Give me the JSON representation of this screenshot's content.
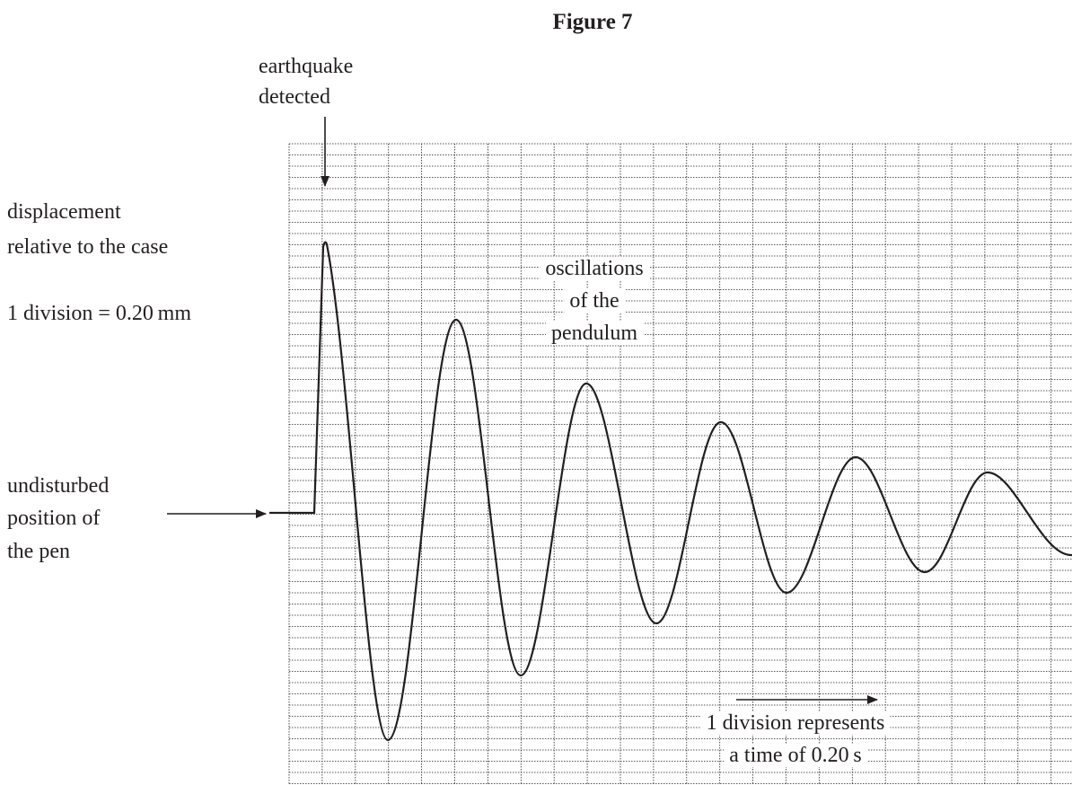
{
  "title": "Figure 7",
  "labels": {
    "earthquake": [
      "earthquake",
      "detected"
    ],
    "displacement": [
      "displacement",
      "relative to the case",
      "1 division = 0.20 mm"
    ],
    "undisturbed": [
      "undisturbed",
      "position of",
      "the pen"
    ],
    "oscillations": [
      "oscillations",
      "of the",
      "pendulum"
    ],
    "time": [
      "1 division represents",
      "a time of 0.20 s"
    ]
  }
}
